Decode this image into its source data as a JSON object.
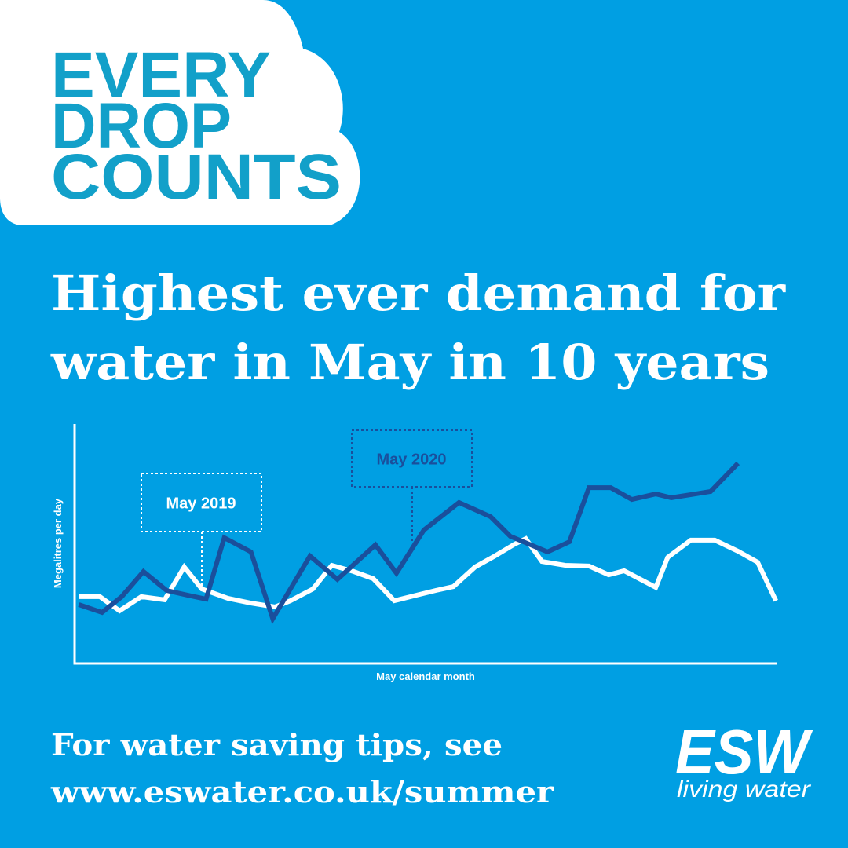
{
  "header": {
    "lines": [
      "EVERY",
      "DROP",
      "COUNTS"
    ]
  },
  "headline": {
    "lines": [
      "Highest ever demand for",
      "water in May in 10 years"
    ]
  },
  "chart_data": {
    "type": "line",
    "ylabel": "Megalitres per day",
    "xlabel": "May calendar month",
    "xlim": [
      0,
      100
    ],
    "ylim": [
      0,
      100
    ],
    "series": [
      {
        "name": "May 2019",
        "color": "#ffffff",
        "x": [
          0.6,
          3.6,
          6.4,
          9.5,
          12.8,
          15.6,
          18.1,
          21.8,
          25.1,
          28.5,
          30.7,
          33.9,
          36.6,
          39.7,
          42.5,
          45.5,
          48.6,
          51.4,
          53.9,
          57.0,
          59.8,
          62.6,
          64.2,
          66.5,
          69.8,
          73.2,
          76.0,
          78.2,
          82.7,
          84.4,
          87.7,
          91.1,
          94.4,
          97.2,
          99.8
        ],
        "values": [
          27.9,
          27.9,
          22.0,
          27.9,
          26.6,
          40.3,
          31.1,
          27.2,
          25.2,
          23.6,
          26.2,
          31.1,
          41.0,
          38.4,
          35.4,
          26.2,
          28.5,
          30.5,
          32.1,
          40.3,
          44.9,
          49.8,
          52.1,
          42.6,
          41.0,
          40.7,
          37.0,
          38.7,
          31.8,
          44.3,
          51.5,
          51.5,
          46.9,
          42.3,
          26.2
        ]
      },
      {
        "name": "May 2020",
        "color": "#1a4f9c",
        "x": [
          0.6,
          3.9,
          6.7,
          9.8,
          13.1,
          16.1,
          18.7,
          21.3,
          25.1,
          28.2,
          30.7,
          33.5,
          37.4,
          42.8,
          45.8,
          49.7,
          54.7,
          59.2,
          62.0,
          67.3,
          70.4,
          73.2,
          76.3,
          79.3,
          82.7,
          84.9,
          90.5,
          94.4
        ],
        "values": [
          24.6,
          21.3,
          27.9,
          38.4,
          30.5,
          28.5,
          26.9,
          52.5,
          46.6,
          18.7,
          31.1,
          44.9,
          35.1,
          49.5,
          37.7,
          55.7,
          67.2,
          61.3,
          53.1,
          46.6,
          50.8,
          73.4,
          73.4,
          68.5,
          70.8,
          69.2,
          71.8,
          83.6
        ]
      }
    ]
  },
  "footer": {
    "lines": [
      "For water saving tips, see",
      "www.eswater.co.uk/summer"
    ]
  },
  "logo": {
    "name": "ESW",
    "tagline": "living water"
  }
}
